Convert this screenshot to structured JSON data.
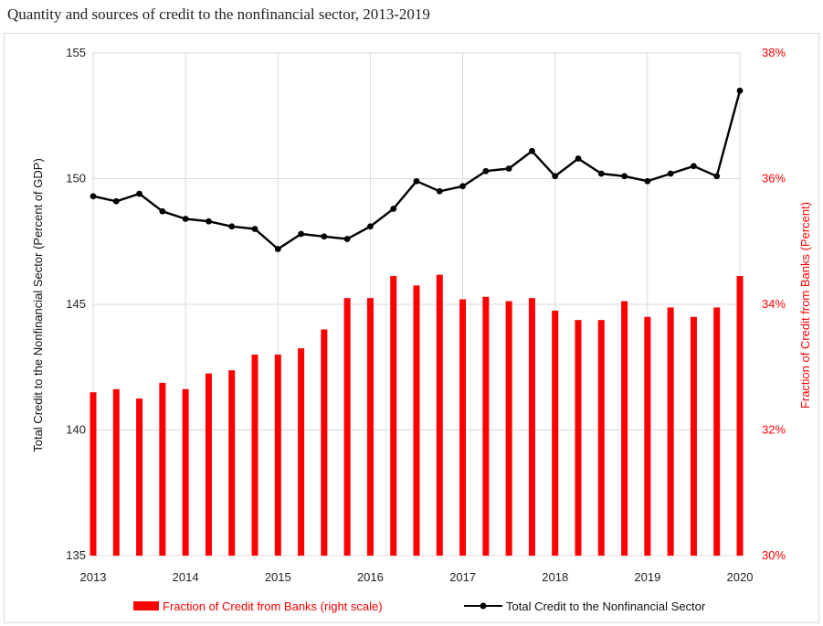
{
  "page_title": "Quantity and sources of credit to the nonfinancial sector, 2013-2019",
  "chart_data": {
    "type": "bar+line",
    "title": "Quantity and sources of credit to the nonfinancial sector, 2013-2019",
    "left_axis": {
      "label": "Total Credit to the Nonfinancial Sector (Percent of GDP)",
      "range": [
        135,
        155
      ],
      "ticks": [
        "135",
        "140",
        "145",
        "150",
        "155"
      ],
      "tick_values": [
        135,
        140,
        145,
        150,
        155
      ]
    },
    "right_axis": {
      "label": "Fraction of Credit from Banks (Percent)",
      "range": [
        30,
        38
      ],
      "ticks": [
        "30%",
        "32%",
        "34%",
        "36%",
        "38%"
      ],
      "tick_values": [
        30,
        32,
        34,
        36,
        38
      ],
      "color": "#ff0000"
    },
    "x_axis": {
      "range": [
        2013,
        2020
      ],
      "ticks": [
        "2013",
        "2014",
        "2015",
        "2016",
        "2017",
        "2018",
        "2019",
        "2020"
      ],
      "tick_values": [
        2013,
        2014,
        2015,
        2016,
        2017,
        2018,
        2019,
        2020
      ]
    },
    "grid": true,
    "legend_position": "bottom",
    "series": [
      {
        "name": "Fraction of Credit from Banks (right scale)",
        "type": "bar",
        "axis": "right",
        "color": "#ff0000",
        "x": [
          2013.0,
          2013.25,
          2013.5,
          2013.75,
          2014.0,
          2014.25,
          2014.5,
          2014.75,
          2015.0,
          2015.25,
          2015.5,
          2015.75,
          2016.0,
          2016.25,
          2016.5,
          2016.75,
          2017.0,
          2017.25,
          2017.5,
          2017.75,
          2018.0,
          2018.25,
          2018.5,
          2018.75,
          2019.0,
          2019.25,
          2019.5,
          2019.75,
          2020.0
        ],
        "values": [
          32.6,
          32.65,
          32.5,
          32.75,
          32.65,
          32.9,
          32.95,
          33.2,
          33.2,
          33.3,
          33.6,
          34.1,
          34.1,
          34.45,
          34.3,
          34.47,
          34.08,
          34.12,
          34.05,
          34.1,
          33.9,
          33.75,
          33.75,
          34.05,
          33.8,
          33.95,
          33.8,
          33.95,
          34.45
        ]
      },
      {
        "name": "Total Credit to the Nonfinancial Sector",
        "type": "line",
        "axis": "left",
        "color": "#000000",
        "x": [
          2013.0,
          2013.25,
          2013.5,
          2013.75,
          2014.0,
          2014.25,
          2014.5,
          2014.75,
          2015.0,
          2015.25,
          2015.5,
          2015.75,
          2016.0,
          2016.25,
          2016.5,
          2016.75,
          2017.0,
          2017.25,
          2017.5,
          2017.75,
          2018.0,
          2018.25,
          2018.5,
          2018.75,
          2019.0,
          2019.25,
          2019.5,
          2019.75,
          2020.0
        ],
        "values": [
          149.3,
          149.1,
          149.4,
          148.7,
          148.4,
          148.3,
          148.1,
          148.0,
          147.2,
          147.8,
          147.7,
          147.6,
          148.1,
          148.8,
          149.9,
          149.5,
          149.7,
          150.3,
          150.4,
          151.1,
          150.1,
          150.8,
          150.2,
          150.1,
          149.9,
          150.2,
          150.5,
          150.1,
          153.5
        ]
      }
    ]
  }
}
